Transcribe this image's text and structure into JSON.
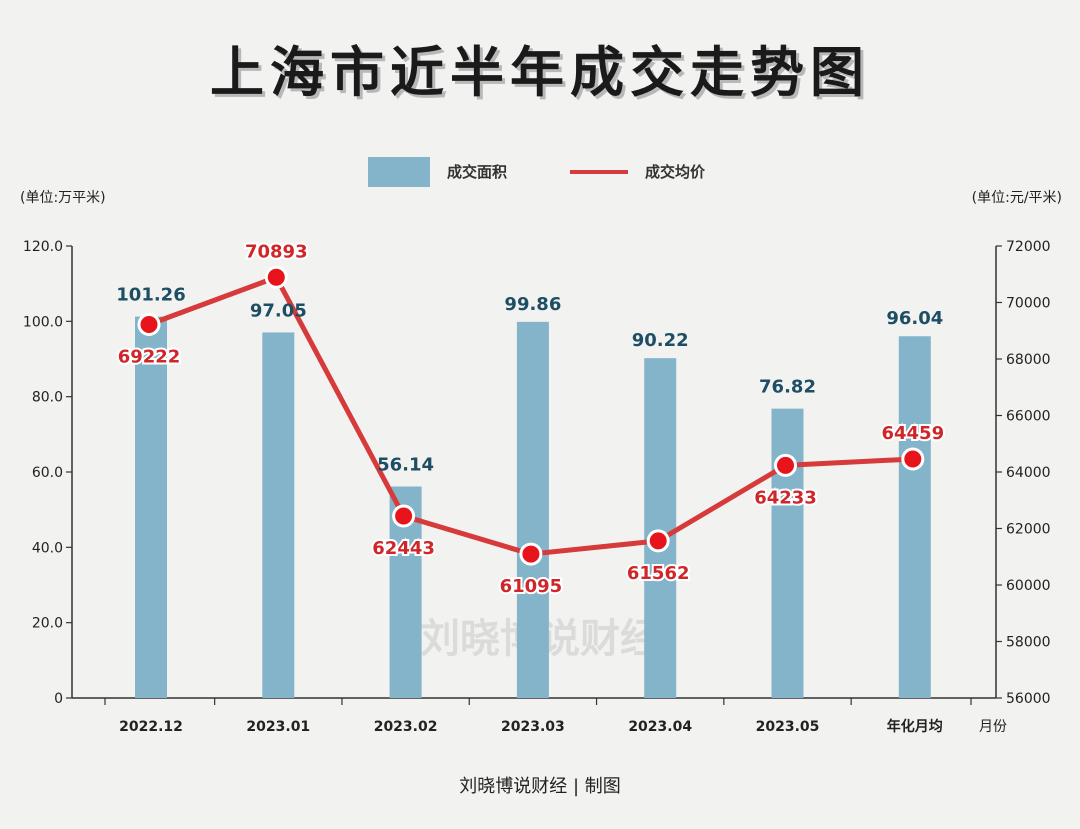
{
  "title": "上海市近半年成交走势图",
  "footer": "刘晓博说财经 | 制图",
  "watermark": "刘晓博说财经",
  "colors": {
    "bar": "#83b4ca",
    "line": "#d63a3a",
    "marker": "#e8141c"
  },
  "chart_data": {
    "type": "bar",
    "categories": [
      "2022.12",
      "2023.01",
      "2023.02",
      "2023.03",
      "2023.04",
      "2023.05",
      "年化月均"
    ],
    "xlabel": "月份",
    "legend": {
      "position": "top-center"
    },
    "y_left": {
      "unit_label": "(单位:万平米)",
      "range": [
        0,
        120
      ],
      "ticks": [
        "0",
        "20.0",
        "40.0",
        "60.0",
        "80.0",
        "100.0",
        "120.0"
      ]
    },
    "y_right": {
      "unit_label": "(单位:元/平米)",
      "range": [
        56000,
        72000
      ],
      "ticks": [
        "56000",
        "58000",
        "60000",
        "62000",
        "64000",
        "66000",
        "68000",
        "70000",
        "72000"
      ]
    },
    "series": [
      {
        "name": "成交面积",
        "type": "bar",
        "axis": "left",
        "values": [
          101.26,
          97.05,
          56.14,
          99.86,
          90.22,
          76.82,
          96.04
        ]
      },
      {
        "name": "成交均价",
        "type": "line",
        "axis": "right",
        "values": [
          69222,
          70893,
          62443,
          61095,
          61562,
          64233,
          64459
        ]
      }
    ]
  }
}
